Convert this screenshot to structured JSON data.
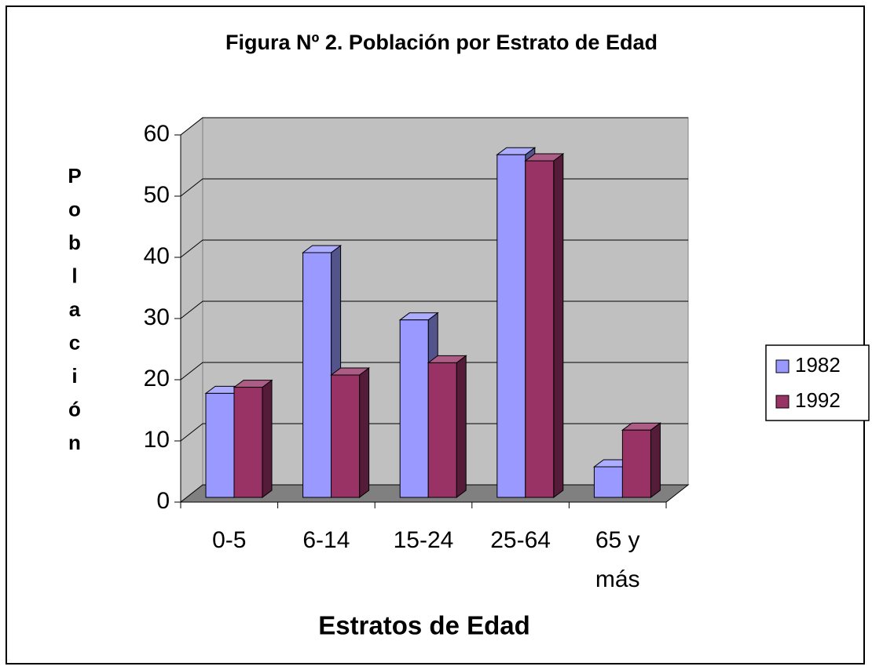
{
  "chart_data": {
    "type": "bar3d",
    "title": "Figura Nº 2. Población por Estrato de Edad",
    "xlabel": "Estratos de Edad",
    "ylabel": "Población",
    "categories": [
      "0-5",
      "6-14",
      "15-24",
      "25-64",
      "65 y más"
    ],
    "series": [
      {
        "name": "1982",
        "color": "#9999ff",
        "values": [
          17,
          40,
          29,
          56,
          5
        ]
      },
      {
        "name": "1992",
        "color": "#993366",
        "values": [
          18,
          20,
          22,
          55,
          11
        ]
      }
    ],
    "ylim": [
      0,
      60
    ],
    "yticks": [
      0,
      10,
      20,
      30,
      40,
      50,
      60
    ],
    "grid": true,
    "legend": "right"
  }
}
